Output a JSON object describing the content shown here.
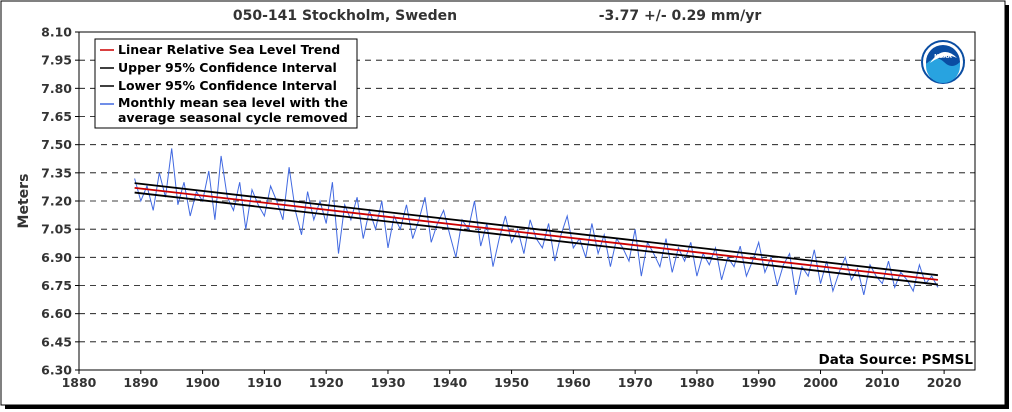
{
  "header": {
    "station": "050-141 Stockholm, Sweden",
    "trend": "-3.77 +/-  0.29 mm/yr"
  },
  "source_note": "Data Source: PSMSL",
  "logo_text": "NOAA",
  "colors": {
    "trend": "#cc0000",
    "confidence": "#000000",
    "monthly": "#4169e1",
    "grid": "#000000",
    "logo_blue": "#0a4da2",
    "logo_cyan": "#28a3e0"
  },
  "chart_data": {
    "type": "line",
    "title": "050-141 Stockholm, Sweden",
    "subtitle": "-3.77 +/-  0.29 mm/yr",
    "xlabel": "",
    "ylabel": "Meters",
    "xlim": [
      1880,
      2025
    ],
    "ylim": [
      6.3,
      8.1
    ],
    "x_ticks": [
      1880,
      1890,
      1900,
      1910,
      1920,
      1930,
      1940,
      1950,
      1960,
      1970,
      1980,
      1990,
      2000,
      2010,
      2020
    ],
    "y_ticks": [
      "6.30",
      "6.45",
      "6.60",
      "6.75",
      "6.90",
      "7.05",
      "7.20",
      "7.35",
      "7.50",
      "7.65",
      "7.80",
      "7.95",
      "8.10"
    ],
    "grid": "horizontal dashed",
    "legend_position": "top-left",
    "legend": [
      "Linear Relative Sea Level Trend",
      "Upper 95% Confidence Interval",
      "Lower 95% Confidence Interval",
      "Monthly mean sea level with the average seasonal cycle removed"
    ],
    "series": [
      {
        "name": "Linear Relative Sea Level Trend",
        "x": [
          1889,
          2019
        ],
        "y": [
          7.27,
          6.78
        ]
      },
      {
        "name": "Upper 95% Confidence Interval",
        "x": [
          1889,
          2019
        ],
        "y": [
          7.295,
          6.805
        ]
      },
      {
        "name": "Lower 95% Confidence Interval",
        "x": [
          1889,
          2019
        ],
        "y": [
          7.245,
          6.755
        ]
      },
      {
        "name": "Monthly mean sea level with the average seasonal cycle removed",
        "x": [
          1889,
          1890,
          1891,
          1892,
          1893,
          1894,
          1895,
          1896,
          1897,
          1898,
          1899,
          1900,
          1901,
          1902,
          1903,
          1904,
          1905,
          1906,
          1907,
          1908,
          1909,
          1910,
          1911,
          1912,
          1913,
          1914,
          1915,
          1916,
          1917,
          1918,
          1919,
          1920,
          1921,
          1922,
          1923,
          1924,
          1925,
          1926,
          1927,
          1928,
          1929,
          1930,
          1931,
          1932,
          1933,
          1934,
          1935,
          1936,
          1937,
          1938,
          1939,
          1940,
          1941,
          1942,
          1943,
          1944,
          1945,
          1946,
          1947,
          1948,
          1949,
          1950,
          1951,
          1952,
          1953,
          1954,
          1955,
          1956,
          1957,
          1958,
          1959,
          1960,
          1961,
          1962,
          1963,
          1964,
          1965,
          1966,
          1967,
          1968,
          1969,
          1970,
          1971,
          1972,
          1973,
          1974,
          1975,
          1976,
          1977,
          1978,
          1979,
          1980,
          1981,
          1982,
          1983,
          1984,
          1985,
          1986,
          1987,
          1988,
          1989,
          1990,
          1991,
          1992,
          1993,
          1994,
          1995,
          1996,
          1997,
          1998,
          1999,
          2000,
          2001,
          2002,
          2003,
          2004,
          2005,
          2006,
          2007,
          2008,
          2009,
          2010,
          2011,
          2012,
          2013,
          2014,
          2015,
          2016,
          2017,
          2018,
          2019
        ],
        "y": [
          7.32,
          7.2,
          7.28,
          7.15,
          7.35,
          7.22,
          7.48,
          7.18,
          7.3,
          7.12,
          7.25,
          7.2,
          7.36,
          7.1,
          7.44,
          7.22,
          7.15,
          7.3,
          7.05,
          7.26,
          7.18,
          7.12,
          7.28,
          7.2,
          7.1,
          7.38,
          7.15,
          7.02,
          7.25,
          7.1,
          7.2,
          7.08,
          7.3,
          6.92,
          7.18,
          7.1,
          7.22,
          7.0,
          7.15,
          7.05,
          7.2,
          6.95,
          7.12,
          7.05,
          7.18,
          7.0,
          7.1,
          7.22,
          6.98,
          7.08,
          7.15,
          7.02,
          6.9,
          7.1,
          7.05,
          7.2,
          6.96,
          7.08,
          6.85,
          7.0,
          7.12,
          6.98,
          7.05,
          6.92,
          7.1,
          7.0,
          6.95,
          7.08,
          6.88,
          7.02,
          7.12,
          6.95,
          7.0,
          6.9,
          7.08,
          6.92,
          7.02,
          6.85,
          7.0,
          6.95,
          6.88,
          7.05,
          6.8,
          6.98,
          6.92,
          6.85,
          7.0,
          6.82,
          6.95,
          6.88,
          6.98,
          6.8,
          6.92,
          6.86,
          6.95,
          6.78,
          6.9,
          6.85,
          6.96,
          6.8,
          6.88,
          6.98,
          6.82,
          6.9,
          6.75,
          6.86,
          6.92,
          6.7,
          6.85,
          6.8,
          6.94,
          6.76,
          6.88,
          6.72,
          6.82,
          6.9,
          6.78,
          6.84,
          6.7,
          6.86,
          6.8,
          6.76,
          6.88,
          6.74,
          6.82,
          6.78,
          6.72,
          6.86,
          6.76,
          6.8,
          6.74
        ]
      }
    ]
  }
}
